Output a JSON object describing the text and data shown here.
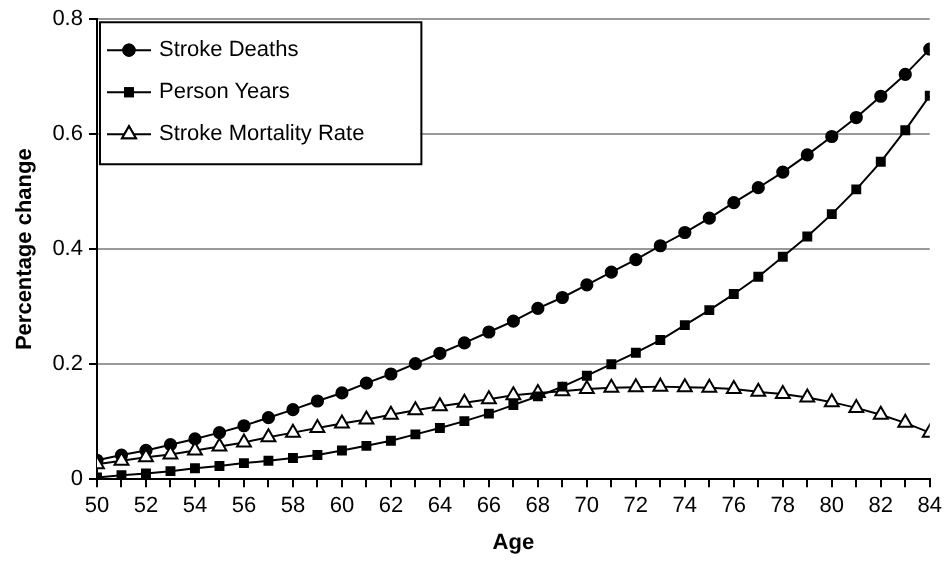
{
  "chart_data": {
    "type": "line",
    "xlabel": "Age",
    "ylabel": "Percentage change",
    "x": [
      50,
      51,
      52,
      53,
      54,
      55,
      56,
      57,
      58,
      59,
      60,
      61,
      62,
      63,
      64,
      65,
      66,
      67,
      68,
      69,
      70,
      71,
      72,
      73,
      74,
      75,
      76,
      77,
      78,
      79,
      80,
      81,
      82,
      83,
      84
    ],
    "series": [
      {
        "name": "Stroke Deaths",
        "color": "#000000",
        "marker": "circle",
        "values": [
          0.033,
          0.042,
          0.05,
          0.06,
          0.07,
          0.081,
          0.093,
          0.107,
          0.121,
          0.136,
          0.15,
          0.167,
          0.183,
          0.201,
          0.219,
          0.237,
          0.256,
          0.275,
          0.297,
          0.316,
          0.338,
          0.36,
          0.382,
          0.406,
          0.429,
          0.454,
          0.481,
          0.507,
          0.534,
          0.564,
          0.596,
          0.629,
          0.666,
          0.704,
          0.748
        ]
      },
      {
        "name": "Person Years",
        "color": "#000000",
        "marker": "square",
        "values": [
          0.003,
          0.007,
          0.01,
          0.014,
          0.019,
          0.023,
          0.028,
          0.032,
          0.037,
          0.042,
          0.05,
          0.058,
          0.067,
          0.078,
          0.089,
          0.101,
          0.114,
          0.129,
          0.144,
          0.161,
          0.18,
          0.2,
          0.22,
          0.242,
          0.268,
          0.294,
          0.322,
          0.352,
          0.387,
          0.422,
          0.461,
          0.504,
          0.552,
          0.607,
          0.667
        ]
      },
      {
        "name": "Stroke Mortality Rate",
        "color": "#000000",
        "marker": "triangle",
        "values": [
          0.026,
          0.032,
          0.038,
          0.043,
          0.05,
          0.057,
          0.064,
          0.073,
          0.081,
          0.089,
          0.097,
          0.104,
          0.112,
          0.12,
          0.127,
          0.133,
          0.139,
          0.146,
          0.15,
          0.153,
          0.157,
          0.159,
          0.16,
          0.161,
          0.16,
          0.159,
          0.157,
          0.152,
          0.148,
          0.142,
          0.134,
          0.124,
          0.112,
          0.098,
          0.081
        ]
      }
    ],
    "xlim": [
      50,
      84
    ],
    "xticks": [
      50,
      {
        "value": 51,
        "label": null
      },
      52,
      {
        "value": 53,
        "label": null
      },
      54,
      {
        "value": 55,
        "label": null
      },
      56,
      {
        "value": 57,
        "label": null
      },
      58,
      {
        "value": 59,
        "label": null
      },
      60,
      {
        "value": 61,
        "label": null
      },
      62,
      {
        "value": 63,
        "label": null
      },
      64,
      {
        "value": 65,
        "label": null
      },
      66,
      {
        "value": 67,
        "label": null
      },
      68,
      {
        "value": 69,
        "label": null
      },
      70,
      {
        "value": 71,
        "label": null
      },
      72,
      {
        "value": 73,
        "label": null
      },
      74,
      {
        "value": 75,
        "label": null
      },
      76,
      {
        "value": 77,
        "label": null
      },
      78,
      {
        "value": 79,
        "label": null
      },
      80,
      {
        "value": 81,
        "label": null
      },
      82,
      {
        "value": 83,
        "label": null
      },
      84
    ],
    "ylim": [
      0,
      0.8
    ],
    "yticks": [
      0,
      0.2,
      0.4,
      0.6,
      0.8
    ],
    "grid": "y",
    "legend": "top left",
    "line_style": "solid"
  }
}
